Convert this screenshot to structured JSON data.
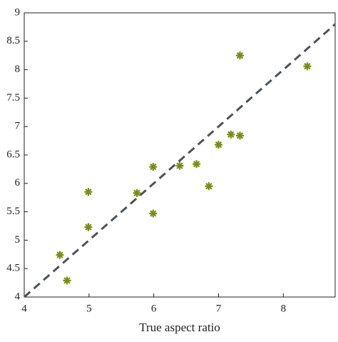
{
  "chart_data": {
    "type": "scatter",
    "xlabel": "True aspect ratio",
    "x": [
      4.55,
      4.66,
      4.99,
      4.99,
      5.74,
      5.99,
      5.99,
      6.4,
      6.66,
      6.85,
      7.0,
      7.19,
      7.33,
      7.33,
      8.37
    ],
    "values": [
      4.74,
      4.29,
      5.85,
      5.23,
      5.83,
      6.29,
      5.47,
      6.31,
      6.34,
      5.95,
      6.68,
      6.86,
      6.84,
      8.25,
      8.06
    ],
    "color": "#7a8c12",
    "reference_line": {
      "x": [
        4,
        8.8
      ],
      "y": [
        4,
        8.8
      ],
      "color": "#4d5358"
    },
    "xlim": [
      4,
      8.8
    ],
    "ylim": [
      4,
      9
    ],
    "xticks": [
      4,
      5,
      6,
      7,
      8
    ],
    "yticks": [
      4,
      4.5,
      5,
      5.5,
      6,
      6.5,
      7,
      7.5,
      8,
      8.5,
      9
    ]
  }
}
